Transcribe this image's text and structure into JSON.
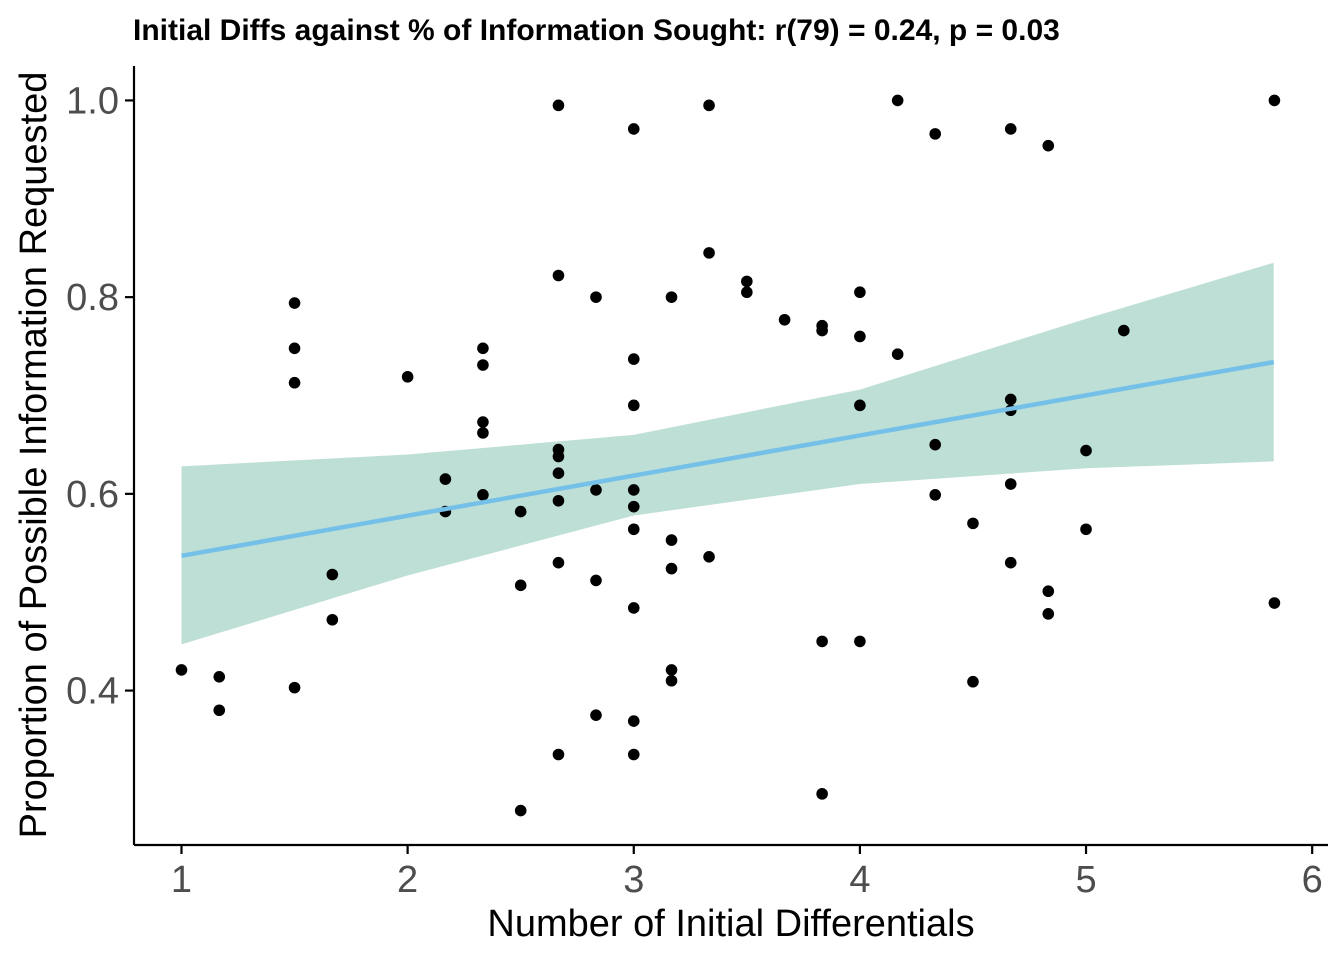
{
  "chart_data": {
    "type": "scatter",
    "title": "Initial Diffs against % of Information Sought: r(79) = 0.24, p = 0.03",
    "xlabel": "Number of Initial Differentials",
    "ylabel": "Proportion of Possible Information Requested",
    "xlim": [
      0.79,
      6.07
    ],
    "ylim": [
      0.243,
      1.035
    ],
    "x_ticks": [
      1,
      2,
      3,
      4,
      5,
      6
    ],
    "x_tick_labels": [
      "1",
      "2",
      "3",
      "4",
      "5",
      "6"
    ],
    "y_ticks": [
      0.4,
      0.6,
      0.8,
      1.0
    ],
    "y_tick_labels": [
      "0.4",
      "0.6",
      "0.8",
      "1.0"
    ],
    "grid": false,
    "colors": {
      "points": "#000000",
      "fit_line": "#74c0e8",
      "confidence_band": "#a8d4c7"
    },
    "fit": {
      "x_range": [
        1.0,
        5.83
      ],
      "y_at_xmin": 0.537,
      "y_at_xmax": 0.734,
      "band": [
        {
          "x": 1.0,
          "lo": 0.447,
          "hi": 0.628
        },
        {
          "x": 2.0,
          "lo": 0.517,
          "hi": 0.64
        },
        {
          "x": 3.0,
          "lo": 0.578,
          "hi": 0.66
        },
        {
          "x": 4.0,
          "lo": 0.61,
          "hi": 0.706
        },
        {
          "x": 5.0,
          "lo": 0.626,
          "hi": 0.778
        },
        {
          "x": 5.83,
          "lo": 0.633,
          "hi": 0.835
        }
      ]
    },
    "points": [
      [
        1.0,
        0.421
      ],
      [
        1.167,
        0.414
      ],
      [
        1.167,
        0.38
      ],
      [
        1.5,
        0.794
      ],
      [
        1.5,
        0.748
      ],
      [
        1.5,
        0.713
      ],
      [
        1.5,
        0.403
      ],
      [
        1.667,
        0.518
      ],
      [
        1.667,
        0.472
      ],
      [
        2.0,
        0.719
      ],
      [
        2.167,
        0.615
      ],
      [
        2.167,
        0.582
      ],
      [
        2.333,
        0.748
      ],
      [
        2.333,
        0.731
      ],
      [
        2.333,
        0.673
      ],
      [
        2.333,
        0.662
      ],
      [
        2.333,
        0.599
      ],
      [
        2.5,
        0.582
      ],
      [
        2.5,
        0.507
      ],
      [
        2.5,
        0.278
      ],
      [
        2.667,
        0.995
      ],
      [
        2.667,
        0.822
      ],
      [
        2.667,
        0.645
      ],
      [
        2.667,
        0.638
      ],
      [
        2.667,
        0.621
      ],
      [
        2.667,
        0.593
      ],
      [
        2.667,
        0.53
      ],
      [
        2.667,
        0.335
      ],
      [
        2.833,
        0.8
      ],
      [
        2.833,
        0.604
      ],
      [
        2.833,
        0.512
      ],
      [
        2.833,
        0.375
      ],
      [
        3.0,
        0.971
      ],
      [
        3.0,
        0.737
      ],
      [
        3.0,
        0.69
      ],
      [
        3.0,
        0.604
      ],
      [
        3.0,
        0.587
      ],
      [
        3.0,
        0.564
      ],
      [
        3.0,
        0.484
      ],
      [
        3.0,
        0.369
      ],
      [
        3.0,
        0.335
      ],
      [
        3.167,
        0.8
      ],
      [
        3.167,
        0.553
      ],
      [
        3.167,
        0.524
      ],
      [
        3.167,
        0.421
      ],
      [
        3.167,
        0.41
      ],
      [
        3.333,
        0.995
      ],
      [
        3.333,
        0.845
      ],
      [
        3.333,
        0.536
      ],
      [
        3.5,
        0.816
      ],
      [
        3.5,
        0.805
      ],
      [
        3.667,
        0.777
      ],
      [
        3.833,
        0.771
      ],
      [
        3.833,
        0.766
      ],
      [
        3.833,
        0.45
      ],
      [
        3.833,
        0.295
      ],
      [
        4.0,
        0.805
      ],
      [
        4.0,
        0.76
      ],
      [
        4.0,
        0.69
      ],
      [
        4.0,
        0.45
      ],
      [
        4.167,
        1.0
      ],
      [
        4.167,
        0.742
      ],
      [
        4.333,
        0.966
      ],
      [
        4.333,
        0.65
      ],
      [
        4.333,
        0.599
      ],
      [
        4.5,
        0.57
      ],
      [
        4.5,
        0.409
      ],
      [
        4.667,
        0.971
      ],
      [
        4.667,
        0.696
      ],
      [
        4.667,
        0.685
      ],
      [
        4.667,
        0.61
      ],
      [
        4.667,
        0.53
      ],
      [
        4.833,
        0.954
      ],
      [
        4.833,
        0.501
      ],
      [
        4.833,
        0.478
      ],
      [
        5.0,
        0.644
      ],
      [
        5.0,
        0.564
      ],
      [
        5.167,
        0.766
      ],
      [
        5.833,
        1.0
      ],
      [
        5.833,
        0.489
      ]
    ]
  }
}
